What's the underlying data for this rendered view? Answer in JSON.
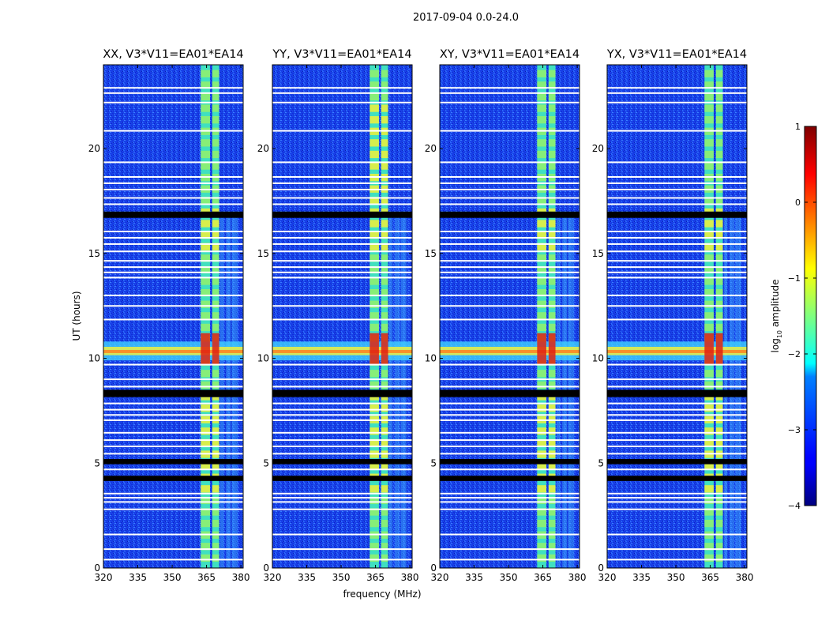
{
  "figure_title": "2017-09-04 0.0-24.0",
  "chart_data": {
    "type": "heatmap",
    "shared": {
      "xlabel": "frequency (MHz)",
      "ylabel": "UT (hours)",
      "xlim": [
        320,
        381
      ],
      "ylim": [
        0,
        24
      ],
      "xticks": [
        320,
        335,
        350,
        365,
        380
      ],
      "yticks": [
        0,
        5,
        10,
        15,
        20
      ],
      "colormap": "jet"
    },
    "panels": [
      {
        "title": "XX, V3*V11=EA01*EA14"
      },
      {
        "title": "YY, V3*V11=EA01*EA14"
      },
      {
        "title": "XY, V3*V11=EA01*EA14"
      },
      {
        "title": "YX, V3*V11=EA01*EA14"
      }
    ],
    "features": {
      "strong_rfi_channels_mhz": [
        [
          362.5,
          366.5
        ],
        [
          367.5,
          370.5
        ]
      ],
      "weak_rfi_channels_mhz": [
        [
          371,
          372.5
        ],
        [
          373.5,
          375.5
        ],
        [
          376,
          378.5
        ]
      ],
      "broadband_burst_ut": [
        9.9,
        10.8
      ],
      "flagged_blocks_ut": [
        [
          8.15,
          8.5
        ],
        [
          16.7,
          17.0
        ],
        [
          4.95,
          5.2
        ],
        [
          4.15,
          4.4
        ]
      ],
      "flagged_lines_ut": [
        0.4,
        0.9,
        1.6,
        2.8,
        3.15,
        3.35,
        3.55,
        4.7,
        5.45,
        5.8,
        6.1,
        6.45,
        7.05,
        7.3,
        7.55,
        7.85,
        8.65,
        9.0,
        9.7,
        11.85,
        12.5,
        13.0,
        13.85,
        14.1,
        14.35,
        14.65,
        15.1,
        15.45,
        15.75,
        16.05,
        17.35,
        17.65,
        18.05,
        18.35,
        18.65,
        19.35,
        20.85,
        22.2,
        22.65,
        22.9
      ]
    },
    "colorbar": {
      "label": "log10 amplitude",
      "label_prefix": "log",
      "label_sub": "10",
      "label_suffix": " amplitude",
      "range": [
        -4,
        1
      ],
      "ticks": [
        "1",
        "0",
        "−1",
        "−2",
        "−3",
        "−4"
      ],
      "tick_values": [
        1,
        0,
        -1,
        -2,
        -3,
        -4
      ]
    }
  }
}
